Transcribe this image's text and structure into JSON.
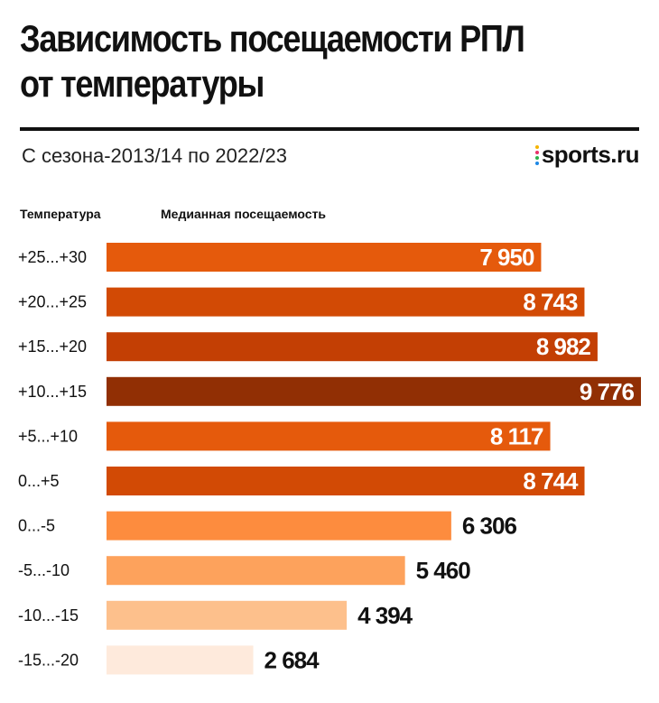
{
  "header": {
    "title_line1": "Зависимость посещаемости РПЛ",
    "title_line2": "от температуры",
    "subtitle": "С сезона-2013/14 по 2022/23",
    "logo_text": "sports.ru"
  },
  "columns": {
    "temperature": "Температура",
    "attendance": "Медианная посещаемость"
  },
  "chart_data": {
    "type": "bar",
    "orientation": "horizontal",
    "title": "Зависимость посещаемости РПЛ от температуры",
    "subtitle": "С сезона-2013/14 по 2022/23",
    "xlabel": "Медианная посещаемость",
    "ylabel": "Температура",
    "categories": [
      "+25...+30",
      "+20...+25",
      "+15...+20",
      "+10...+15",
      "+5...+10",
      "0...+5",
      "0...-5",
      "-5...-10",
      "-10...-15",
      "-15...-20"
    ],
    "values": [
      7950,
      8743,
      8982,
      9776,
      8117,
      8744,
      6306,
      5460,
      4394,
      2684
    ],
    "value_labels": [
      "7 950",
      "8 743",
      "8 982",
      "9 776",
      "8 117",
      "8 744",
      "6 306",
      "5 460",
      "4 394",
      "2 684"
    ],
    "colors": [
      "#e55a0c",
      "#d24a05",
      "#c33f04",
      "#912f04",
      "#e55a0c",
      "#d24a05",
      "#fd8c3e",
      "#fda25c",
      "#fdc08c",
      "#feeadc"
    ],
    "xlim": [
      0,
      9776
    ],
    "grid": false,
    "legend": "none"
  }
}
